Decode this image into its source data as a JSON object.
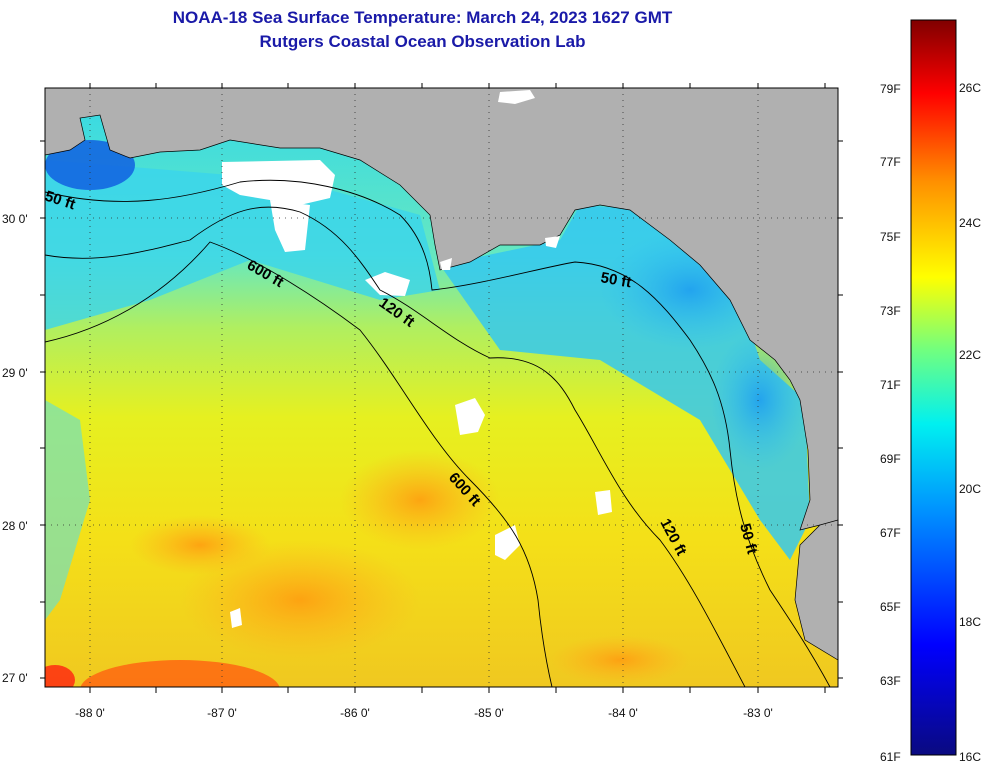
{
  "title": {
    "line1": "NOAA-18 Sea Surface Temperature:  March 24, 2023 1627 GMT",
    "line2": "Rutgers Coastal Ocean Observation Lab"
  },
  "map": {
    "lat_labels": [
      "30 0'",
      "29 0'",
      "28 0'",
      "27 0'"
    ],
    "lon_labels": [
      "-88 0'",
      "-87 0'",
      "-86 0'",
      "-85 0'",
      "-84 0'",
      "-83 0'"
    ],
    "isobath_labels": [
      "50 ft",
      "600 ft",
      "120 ft",
      "50 ft",
      "600 ft",
      "120 ft",
      "50 ft"
    ],
    "colors": {
      "land": "#b0b0b0",
      "cloud": "#ffffff",
      "contour": "#000000"
    }
  },
  "colorbar": {
    "fahrenheit_labels": [
      "79F",
      "77F",
      "75F",
      "73F",
      "71F",
      "69F",
      "67F",
      "65F",
      "63F",
      "61F"
    ],
    "celsius_labels": [
      "26C",
      "24C",
      "22C",
      "20C",
      "18C",
      "16C"
    ],
    "colors": [
      "#0a0a80",
      "#0000ff",
      "#0090ff",
      "#00f0f0",
      "#70ff80",
      "#ffff00",
      "#ff9000",
      "#ff0000",
      "#800000"
    ]
  }
}
